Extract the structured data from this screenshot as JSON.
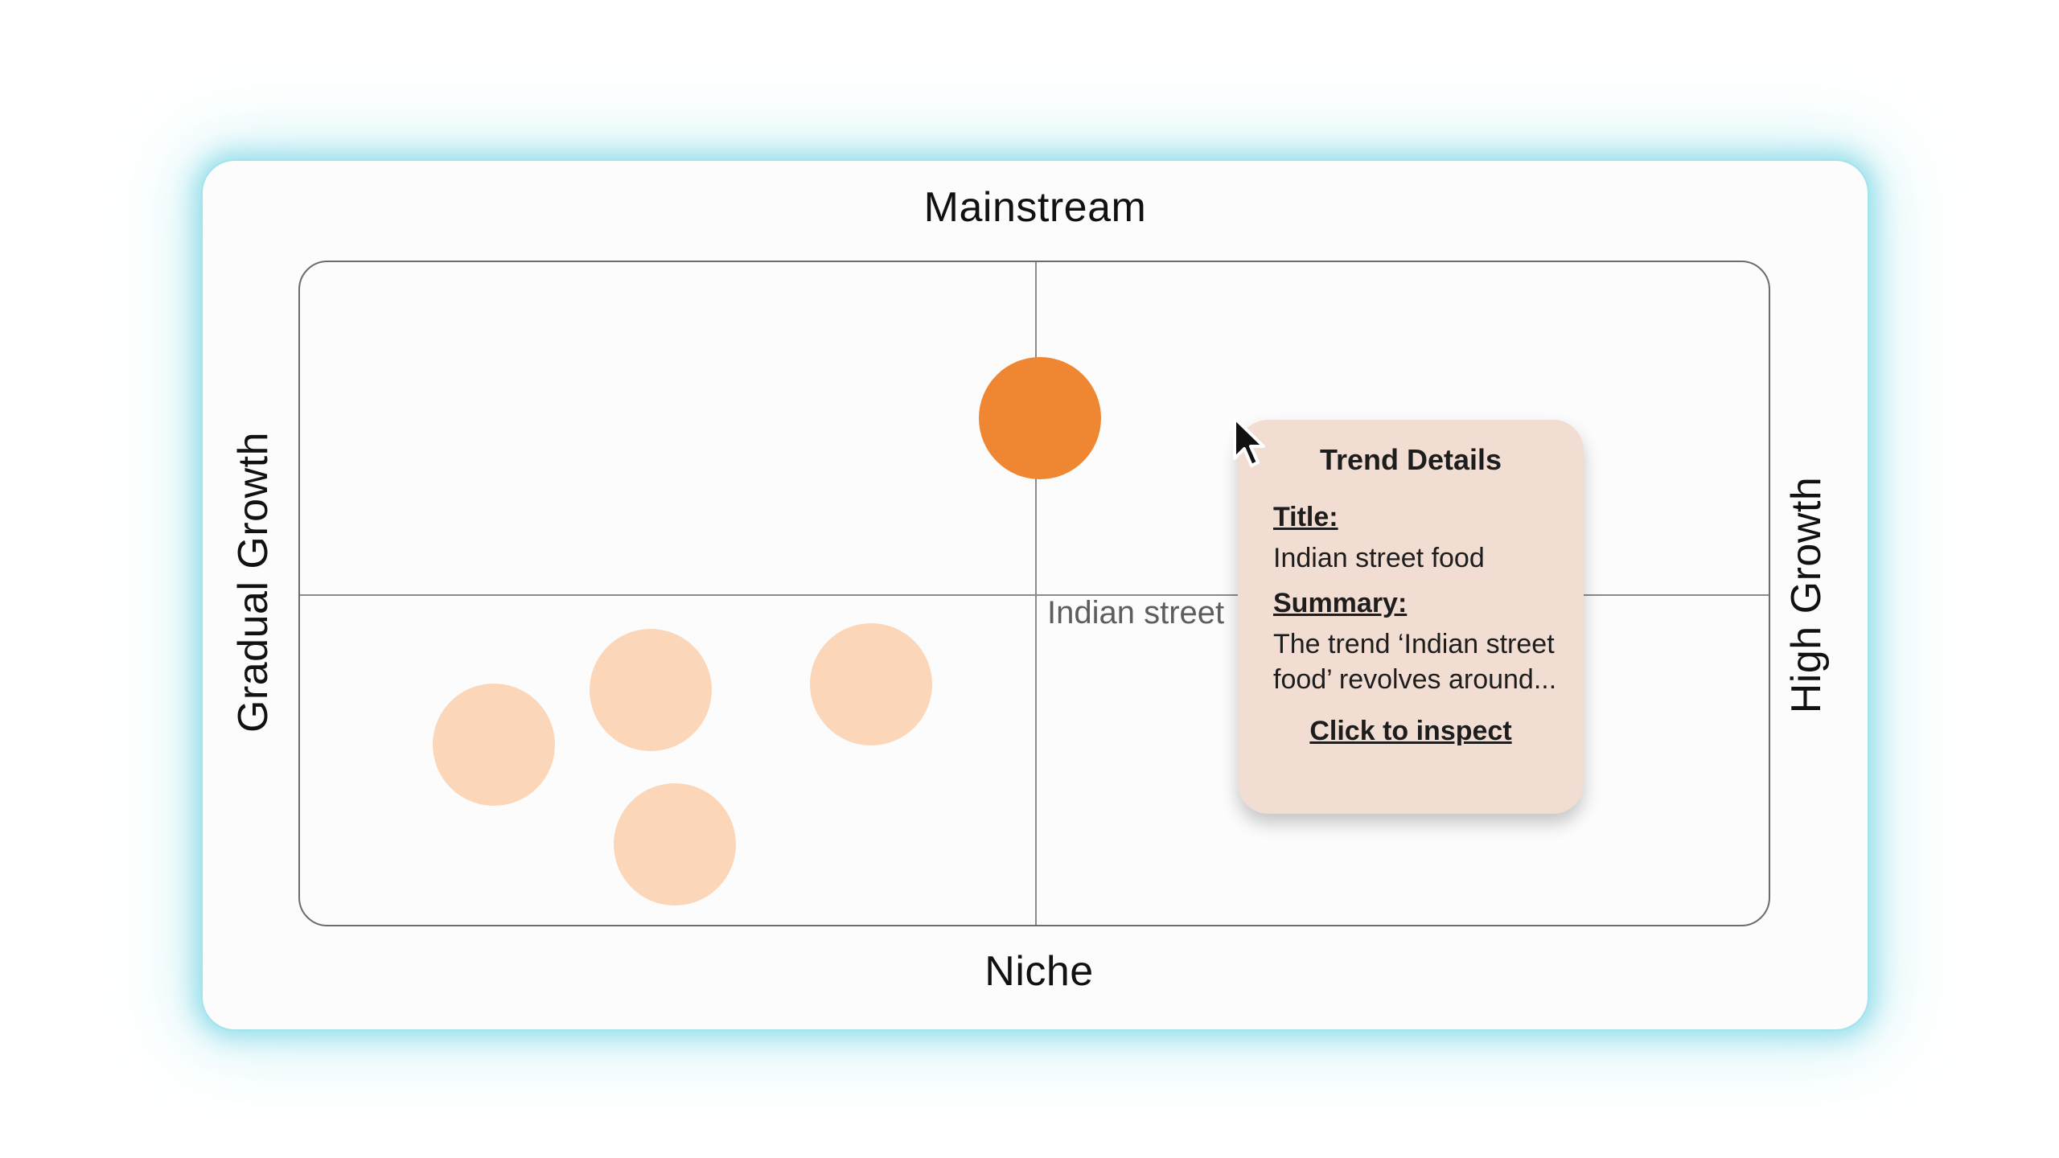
{
  "matrix": {
    "labels": {
      "top": "Mainstream",
      "bottom": "Niche",
      "left": "Gradual Growth",
      "right": "High Growth"
    },
    "selected_label": "Indian street",
    "bubbles": [
      {
        "name": "active-trend",
        "state": "active"
      },
      {
        "name": "trend-bubble-1",
        "state": "inactive"
      },
      {
        "name": "trend-bubble-2",
        "state": "inactive"
      },
      {
        "name": "trend-bubble-3",
        "state": "inactive"
      },
      {
        "name": "trend-bubble-4",
        "state": "inactive"
      }
    ]
  },
  "tooltip": {
    "heading": "Trend Details",
    "title_label": "Title:",
    "title_value": "Indian street food",
    "summary_label": "Summary:",
    "summary_value": "The trend ‘Indian street food’ revolves around...",
    "action_label": "Click to inspect"
  },
  "colors": {
    "accent": "#ef8632",
    "bubble_inactive": "#fcd6b8",
    "tooltip_background": "#f1ddd2",
    "card_glow": "#92dde9"
  },
  "icons": {
    "cursor": "cursor-icon"
  }
}
